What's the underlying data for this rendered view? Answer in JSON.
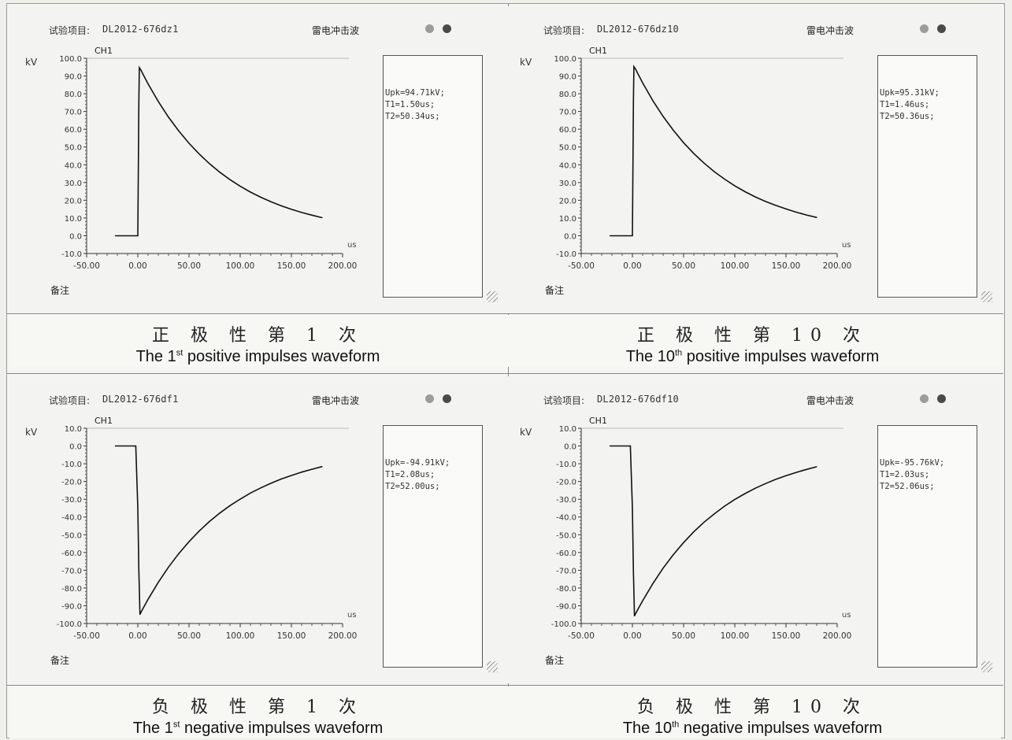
{
  "chart_data": [
    {
      "type": "line",
      "title": "DL2012-676dz1",
      "label_prefix": "试验项目:",
      "waveform_type": "雷电冲击波",
      "channel": "CH1",
      "ylabel": "kV",
      "xlabel": "us",
      "note_label": "备注",
      "xlim": [
        -50,
        200
      ],
      "ylim": [
        -10,
        100
      ],
      "xticks": [
        "-50.00",
        "0.00",
        "50.00",
        "100.00",
        "150.00",
        "200.00"
      ],
      "yticks": [
        "100.0",
        "90.0",
        "80.0",
        "70.0",
        "60.0",
        "50.0",
        "40.0",
        "30.0",
        "20.0",
        "10.0",
        "0.0",
        "-10.0"
      ],
      "info": [
        "Upk=94.71kV;",
        "T1=1.50us;",
        "T2=50.34us;"
      ],
      "series": [
        {
          "x": [
            -22,
            -1,
            0,
            0.5,
            1,
            1.5,
            3,
            5,
            10,
            20,
            30,
            40,
            50,
            60,
            70,
            80,
            90,
            100,
            110,
            120,
            130,
            140,
            150,
            160,
            170,
            180
          ],
          "y": [
            0,
            0,
            0,
            40,
            75,
            94.71,
            93.4,
            91.1,
            85.6,
            75.6,
            66.8,
            59.0,
            52.1,
            46.0,
            40.6,
            35.8,
            31.6,
            27.9,
            24.6,
            21.7,
            19.2,
            16.9,
            14.9,
            13.1,
            11.6,
            10.2
          ]
        }
      ],
      "caption_zh": "正 极 性 第 1 次",
      "caption_en_pre": "The 1",
      "caption_en_sup": "st",
      "caption_en_post": " positive impulses waveform"
    },
    {
      "type": "line",
      "title": "DL2012-676dz10",
      "label_prefix": "试验项目:",
      "waveform_type": "雷电冲击波",
      "channel": "CH1",
      "ylabel": "kV",
      "xlabel": "us",
      "note_label": "备注",
      "xlim": [
        -50,
        200
      ],
      "ylim": [
        -10,
        100
      ],
      "xticks": [
        "-50.00",
        "0.00",
        "50.00",
        "100.00",
        "150.00",
        "200.00"
      ],
      "yticks": [
        "100.0",
        "90.0",
        "80.0",
        "70.0",
        "60.0",
        "50.0",
        "40.0",
        "30.0",
        "20.0",
        "10.0",
        "0.0",
        "-10.0"
      ],
      "info": [
        "Upk=95.31kV;",
        "T1=1.46us;",
        "T2=50.36us;"
      ],
      "series": [
        {
          "x": [
            -22,
            -1,
            0,
            0.5,
            1,
            1.46,
            3,
            5,
            10,
            20,
            30,
            40,
            50,
            60,
            70,
            80,
            90,
            100,
            110,
            120,
            130,
            140,
            150,
            160,
            170,
            180
          ],
          "y": [
            0,
            0,
            0,
            40,
            76,
            95.31,
            94.0,
            91.7,
            86.1,
            76.1,
            67.2,
            59.4,
            52.4,
            46.3,
            40.9,
            36.1,
            31.9,
            28.1,
            24.8,
            21.9,
            19.3,
            17.1,
            15.1,
            13.3,
            11.7,
            10.3
          ]
        }
      ],
      "caption_zh": "正 极 性 第 10 次",
      "caption_en_pre": "The 10",
      "caption_en_sup": "th",
      "caption_en_post": " positive impulses waveform"
    },
    {
      "type": "line",
      "title": "DL2012-676df1",
      "label_prefix": "试验项目:",
      "waveform_type": "雷电冲击波",
      "channel": "CH1",
      "ylabel": "kV",
      "xlabel": "us",
      "note_label": "备注",
      "xlim": [
        -50,
        200
      ],
      "ylim": [
        -100,
        10
      ],
      "xticks": [
        "-50.00",
        "0.00",
        "50.00",
        "100.00",
        "150.00",
        "200.00"
      ],
      "yticks": [
        "10.0",
        "0.0",
        "-10.0",
        "-20.0",
        "-30.0",
        "-40.0",
        "-50.0",
        "-60.0",
        "-70.0",
        "-80.0",
        "-90.0",
        "-100.0"
      ],
      "info": [
        "Upk=-94.91kV;",
        "T1=2.08us;",
        "T2=52.00us;"
      ],
      "series": [
        {
          "x": [
            -22,
            -3,
            -2,
            0,
            1,
            2.08,
            3,
            5,
            10,
            20,
            30,
            40,
            50,
            60,
            70,
            80,
            90,
            100,
            110,
            120,
            130,
            140,
            150,
            160,
            170,
            180
          ],
          "y": [
            0,
            0,
            0,
            -35,
            -70,
            -94.91,
            -93.8,
            -91.6,
            -86.4,
            -76.8,
            -68.2,
            -60.6,
            -53.9,
            -47.9,
            -42.5,
            -37.8,
            -33.6,
            -29.9,
            -26.5,
            -23.6,
            -21.0,
            -18.6,
            -16.6,
            -14.7,
            -13.1,
            -11.6
          ]
        }
      ],
      "caption_zh": "负 极 性 第 1 次",
      "caption_en_pre": "The 1",
      "caption_en_sup": "st",
      "caption_en_post": " negative impulses waveform"
    },
    {
      "type": "line",
      "title": "DL2012-676df10",
      "label_prefix": "试验项目:",
      "waveform_type": "雷电冲击波",
      "channel": "CH1",
      "ylabel": "kV",
      "xlabel": "us",
      "note_label": "备注",
      "xlim": [
        -50,
        200
      ],
      "ylim": [
        -100,
        10
      ],
      "xticks": [
        "-50.00",
        "0.00",
        "50.00",
        "100.00",
        "150.00",
        "200.00"
      ],
      "yticks": [
        "10.0",
        "0.0",
        "-10.0",
        "-20.0",
        "-30.0",
        "-40.0",
        "-50.0",
        "-60.0",
        "-70.0",
        "-80.0",
        "-90.0",
        "-100.0"
      ],
      "info": [
        "Upk=-95.76kV;",
        "T1=2.03us;",
        "T2=52.06us;"
      ],
      "series": [
        {
          "x": [
            -22,
            -3,
            -2,
            0,
            1,
            2.03,
            3,
            5,
            10,
            20,
            30,
            40,
            50,
            60,
            70,
            80,
            90,
            100,
            110,
            120,
            130,
            140,
            150,
            160,
            170,
            180
          ],
          "y": [
            0,
            0,
            0,
            -35,
            -71,
            -95.76,
            -94.6,
            -92.4,
            -87.2,
            -77.5,
            -68.8,
            -61.2,
            -54.4,
            -48.3,
            -42.9,
            -38.2,
            -33.9,
            -30.1,
            -26.8,
            -23.8,
            -21.2,
            -18.8,
            -16.7,
            -14.9,
            -13.2,
            -11.7
          ]
        }
      ],
      "caption_zh": "负 极 性 第 10 次",
      "caption_en_pre": "The 10",
      "caption_en_sup": "th",
      "caption_en_post": " negative impulses waveform"
    }
  ],
  "colors": {
    "trace": "#111111",
    "axis": "#333333",
    "grid_bg": "#f3f3f1"
  }
}
